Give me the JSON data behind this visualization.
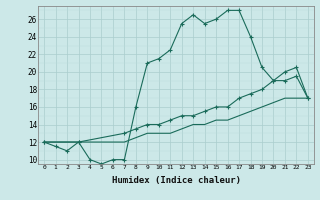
{
  "xlabel": "Humidex (Indice chaleur)",
  "ylabel": "",
  "bg_color": "#cce8e8",
  "line_color": "#1a6b5a",
  "grid_color_major": "#aacece",
  "grid_color_minor": "#bbdddd",
  "xlim": [
    -0.5,
    23.5
  ],
  "ylim": [
    9.5,
    27.5
  ],
  "xticks": [
    0,
    1,
    2,
    3,
    4,
    5,
    6,
    7,
    8,
    9,
    10,
    11,
    12,
    13,
    14,
    15,
    16,
    17,
    18,
    19,
    20,
    21,
    22,
    23
  ],
  "yticks": [
    10,
    12,
    14,
    16,
    18,
    20,
    22,
    24,
    26
  ],
  "curve1_x": [
    0,
    1,
    2,
    3,
    4,
    5,
    6,
    7,
    8,
    9,
    10,
    11,
    12,
    13,
    14,
    15,
    16,
    17,
    18,
    19,
    20,
    21,
    22,
    23
  ],
  "curve1_y": [
    12,
    11.5,
    11,
    12,
    10,
    9.5,
    10,
    10,
    16,
    21,
    21.5,
    22.5,
    25.5,
    26.5,
    25.5,
    26,
    27,
    27,
    24,
    20.5,
    19,
    19,
    19.5,
    17
  ],
  "curve2_x": [
    0,
    3,
    7,
    8,
    9,
    10,
    11,
    12,
    13,
    14,
    15,
    16,
    17,
    18,
    19,
    20,
    21,
    22,
    23
  ],
  "curve2_y": [
    12,
    12,
    13,
    13.5,
    14,
    14,
    14.5,
    15,
    15,
    15.5,
    16,
    16,
    17,
    17.5,
    18,
    19,
    20,
    20.5,
    17
  ],
  "curve3_x": [
    0,
    3,
    7,
    8,
    9,
    10,
    11,
    12,
    13,
    14,
    15,
    16,
    17,
    18,
    19,
    20,
    21,
    22,
    23
  ],
  "curve3_y": [
    12,
    12,
    12,
    12.5,
    13,
    13,
    13,
    13.5,
    14,
    14,
    14.5,
    14.5,
    15,
    15.5,
    16,
    16.5,
    17,
    17,
    17
  ]
}
